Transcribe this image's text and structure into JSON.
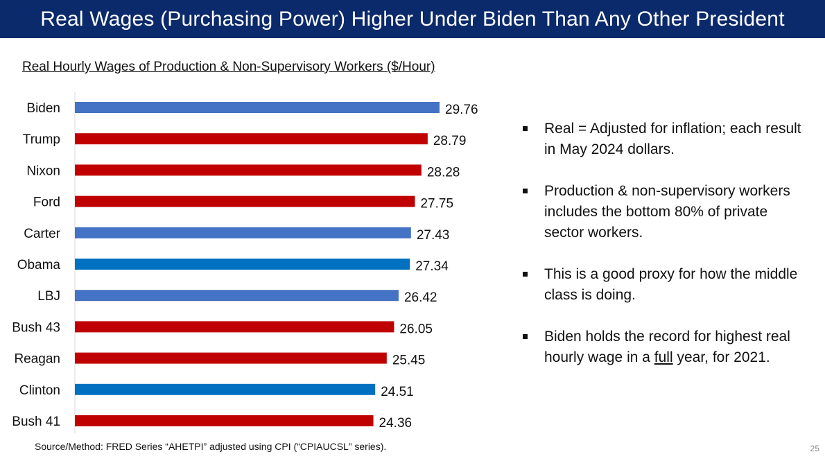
{
  "header": {
    "title": "Real Wages (Purchasing Power) Higher Under Biden Than Any Other President"
  },
  "chart_data": {
    "type": "bar",
    "orientation": "horizontal",
    "title": "Real Hourly Wages of Production & Non-Supervisory Workers ($/Hour)",
    "xlabel": "",
    "ylabel": "",
    "grid": false,
    "categories": [
      "Biden",
      "Trump",
      "Nixon",
      "Ford",
      "Carter",
      "Obama",
      "LBJ",
      "Bush 43",
      "Reagan",
      "Clinton",
      "Bush 41"
    ],
    "values": [
      29.76,
      28.79,
      28.28,
      27.75,
      27.43,
      27.34,
      26.42,
      26.05,
      25.45,
      24.51,
      24.36
    ],
    "value_labels": [
      "29.76",
      "28.79",
      "28.28",
      "27.75",
      "27.43",
      "27.34",
      "26.42",
      "26.05",
      "25.45",
      "24.51",
      "24.36"
    ],
    "bar_colors": [
      "#4472c4",
      "#c00000",
      "#c00000",
      "#c00000",
      "#4472c4",
      "#0070c0",
      "#4472c4",
      "#c00000",
      "#c00000",
      "#0070c0",
      "#c00000"
    ]
  },
  "notes": {
    "bullet1": "Real = Adjusted for inflation; each result in May 2024 dollars.",
    "bullet2": "Production & non-supervisory workers includes the bottom 80% of private sector workers.",
    "bullet3": "This is a good proxy for how the middle class is doing.",
    "bullet4_pre": "Biden holds the record for highest real hourly wage in a ",
    "bullet4_emph": "full",
    "bullet4_post": " year, for 2021."
  },
  "footer": {
    "source": "Source/Method: FRED Series “AHETPI” adjusted using CPI (“CPIAUCSL” series).",
    "page_number": "25"
  },
  "colors": {
    "title_bar": "#0b2a6b",
    "axis": "#d9d9d9"
  }
}
